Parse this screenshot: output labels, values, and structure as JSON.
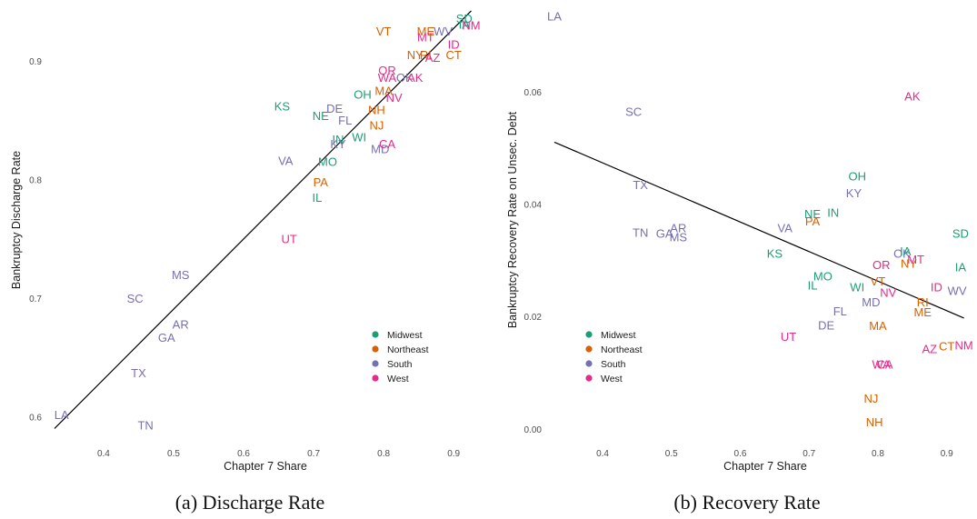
{
  "colors": {
    "Midwest": "#1b9e77",
    "Northeast": "#d95f02",
    "South": "#7570b3",
    "West": "#e7298a",
    "fit_line": "#000000"
  },
  "chart_data": [
    {
      "type": "scatter",
      "caption": "(a) Discharge Rate",
      "xlabel": "Chapter 7 Share",
      "ylabel": "Bankruptcy Discharge Rate",
      "xlim": [
        0.33,
        0.94
      ],
      "ylim": [
        0.585,
        0.945
      ],
      "xticks": [
        0.4,
        0.5,
        0.6,
        0.7,
        0.8,
        0.9
      ],
      "yticks": [
        0.6,
        0.7,
        0.8,
        0.9
      ],
      "grid": false,
      "legend_position": "bottom-right",
      "legend": [
        "Midwest",
        "Northeast",
        "South",
        "West"
      ],
      "fit_line": [
        [
          0.33,
          0.59
        ],
        [
          0.925,
          0.942
        ]
      ],
      "points": [
        {
          "label": "LA",
          "region": "South",
          "x": 0.34,
          "y": 0.602
        },
        {
          "label": "TN",
          "region": "South",
          "x": 0.46,
          "y": 0.593
        },
        {
          "label": "TX",
          "region": "South",
          "x": 0.45,
          "y": 0.637
        },
        {
          "label": "SC",
          "region": "South",
          "x": 0.445,
          "y": 0.7
        },
        {
          "label": "GA",
          "region": "South",
          "x": 0.49,
          "y": 0.667
        },
        {
          "label": "AR",
          "region": "South",
          "x": 0.51,
          "y": 0.678
        },
        {
          "label": "MS",
          "region": "South",
          "x": 0.51,
          "y": 0.72
        },
        {
          "label": "UT",
          "region": "West",
          "x": 0.665,
          "y": 0.75
        },
        {
          "label": "IL",
          "region": "Midwest",
          "x": 0.705,
          "y": 0.785
        },
        {
          "label": "PA",
          "region": "Northeast",
          "x": 0.71,
          "y": 0.798
        },
        {
          "label": "MO",
          "region": "Midwest",
          "x": 0.72,
          "y": 0.815
        },
        {
          "label": "VA",
          "region": "South",
          "x": 0.66,
          "y": 0.816
        },
        {
          "label": "KS",
          "region": "Midwest",
          "x": 0.655,
          "y": 0.862
        },
        {
          "label": "NE",
          "region": "Midwest",
          "x": 0.71,
          "y": 0.854
        },
        {
          "label": "DE",
          "region": "South",
          "x": 0.73,
          "y": 0.86
        },
        {
          "label": "FL",
          "region": "South",
          "x": 0.745,
          "y": 0.85
        },
        {
          "label": "IN",
          "region": "Midwest",
          "x": 0.735,
          "y": 0.834
        },
        {
          "label": "KY",
          "region": "South",
          "x": 0.735,
          "y": 0.83
        },
        {
          "label": "WI",
          "region": "Midwest",
          "x": 0.765,
          "y": 0.836
        },
        {
          "label": "NJ",
          "region": "Northeast",
          "x": 0.79,
          "y": 0.846
        },
        {
          "label": "NH",
          "region": "Northeast",
          "x": 0.79,
          "y": 0.859
        },
        {
          "label": "OH",
          "region": "Midwest",
          "x": 0.77,
          "y": 0.872
        },
        {
          "label": "MA",
          "region": "Northeast",
          "x": 0.8,
          "y": 0.875
        },
        {
          "label": "NV",
          "region": "West",
          "x": 0.815,
          "y": 0.869
        },
        {
          "label": "MD",
          "region": "South",
          "x": 0.795,
          "y": 0.826
        },
        {
          "label": "CA",
          "region": "West",
          "x": 0.805,
          "y": 0.83
        },
        {
          "label": "OR",
          "region": "West",
          "x": 0.805,
          "y": 0.892
        },
        {
          "label": "WA",
          "region": "West",
          "x": 0.805,
          "y": 0.886
        },
        {
          "label": "OK",
          "region": "South",
          "x": 0.83,
          "y": 0.886
        },
        {
          "label": "AK",
          "region": "West",
          "x": 0.845,
          "y": 0.886
        },
        {
          "label": "NY",
          "region": "Northeast",
          "x": 0.845,
          "y": 0.905
        },
        {
          "label": "RI",
          "region": "Northeast",
          "x": 0.86,
          "y": 0.905
        },
        {
          "label": "AZ",
          "region": "West",
          "x": 0.87,
          "y": 0.903
        },
        {
          "label": "CT",
          "region": "Northeast",
          "x": 0.9,
          "y": 0.905
        },
        {
          "label": "VT",
          "region": "Northeast",
          "x": 0.8,
          "y": 0.925
        },
        {
          "label": "ME",
          "region": "Northeast",
          "x": 0.86,
          "y": 0.925
        },
        {
          "label": "MT",
          "region": "West",
          "x": 0.86,
          "y": 0.92
        },
        {
          "label": "WV",
          "region": "South",
          "x": 0.885,
          "y": 0.925
        },
        {
          "label": "ID",
          "region": "West",
          "x": 0.9,
          "y": 0.914
        },
        {
          "label": "SD",
          "region": "Midwest",
          "x": 0.915,
          "y": 0.936
        },
        {
          "label": "IA",
          "region": "Midwest",
          "x": 0.915,
          "y": 0.931
        },
        {
          "label": "NM",
          "region": "West",
          "x": 0.925,
          "y": 0.93
        }
      ]
    },
    {
      "type": "scatter",
      "caption": "(b) Recovery Rate",
      "xlabel": "Chapter 7 Share",
      "ylabel": "Bankruptcy Recovery Rate on Unsec. Debt",
      "xlim": [
        0.33,
        0.94
      ],
      "ylim": [
        -0.001,
        0.075
      ],
      "xticks": [
        0.4,
        0.5,
        0.6,
        0.7,
        0.8,
        0.9
      ],
      "yticks": [
        0.0,
        0.02,
        0.04,
        0.06
      ],
      "ytick_labels": [
        "0.00",
        "0.02",
        "0.04",
        "0.06"
      ],
      "grid": false,
      "legend_position": "bottom-left",
      "legend": [
        "Midwest",
        "Northeast",
        "South",
        "West"
      ],
      "fit_line": [
        [
          0.33,
          0.051
        ],
        [
          0.925,
          0.0197
        ]
      ],
      "points": [
        {
          "label": "LA",
          "region": "South",
          "x": 0.33,
          "y": 0.0735
        },
        {
          "label": "SC",
          "region": "South",
          "x": 0.445,
          "y": 0.0565
        },
        {
          "label": "TX",
          "region": "South",
          "x": 0.455,
          "y": 0.0435
        },
        {
          "label": "TN",
          "region": "South",
          "x": 0.455,
          "y": 0.035
        },
        {
          "label": "GA",
          "region": "South",
          "x": 0.49,
          "y": 0.0348
        },
        {
          "label": "MS",
          "region": "South",
          "x": 0.51,
          "y": 0.0342
        },
        {
          "label": "AR",
          "region": "South",
          "x": 0.51,
          "y": 0.0358
        },
        {
          "label": "VA",
          "region": "South",
          "x": 0.665,
          "y": 0.0358
        },
        {
          "label": "PA",
          "region": "Northeast",
          "x": 0.705,
          "y": 0.037
        },
        {
          "label": "NE",
          "region": "Midwest",
          "x": 0.705,
          "y": 0.0383
        },
        {
          "label": "IN",
          "region": "Midwest",
          "x": 0.735,
          "y": 0.0385
        },
        {
          "label": "KY",
          "region": "South",
          "x": 0.765,
          "y": 0.042
        },
        {
          "label": "OH",
          "region": "Midwest",
          "x": 0.77,
          "y": 0.045
        },
        {
          "label": "KS",
          "region": "Midwest",
          "x": 0.65,
          "y": 0.0313
        },
        {
          "label": "MO",
          "region": "Midwest",
          "x": 0.72,
          "y": 0.0272
        },
        {
          "label": "IL",
          "region": "Midwest",
          "x": 0.705,
          "y": 0.0256
        },
        {
          "label": "WI",
          "region": "Midwest",
          "x": 0.77,
          "y": 0.0253
        },
        {
          "label": "VT",
          "region": "Northeast",
          "x": 0.8,
          "y": 0.0263
        },
        {
          "label": "MD",
          "region": "South",
          "x": 0.79,
          "y": 0.0226
        },
        {
          "label": "NV",
          "region": "West",
          "x": 0.815,
          "y": 0.0243
        },
        {
          "label": "FL",
          "region": "South",
          "x": 0.745,
          "y": 0.021
        },
        {
          "label": "DE",
          "region": "South",
          "x": 0.725,
          "y": 0.0185
        },
        {
          "label": "MA",
          "region": "Northeast",
          "x": 0.8,
          "y": 0.0184
        },
        {
          "label": "UT",
          "region": "West",
          "x": 0.67,
          "y": 0.0165
        },
        {
          "label": "OR",
          "region": "West",
          "x": 0.805,
          "y": 0.0292
        },
        {
          "label": "OK",
          "region": "South",
          "x": 0.835,
          "y": 0.0313
        },
        {
          "label": "IA",
          "region": "Midwest",
          "x": 0.84,
          "y": 0.0317
        },
        {
          "label": "NY",
          "region": "Northeast",
          "x": 0.845,
          "y": 0.0295
        },
        {
          "label": "MT",
          "region": "West",
          "x": 0.855,
          "y": 0.0302
        },
        {
          "label": "RI",
          "region": "Northeast",
          "x": 0.865,
          "y": 0.0226
        },
        {
          "label": "ME",
          "region": "Northeast",
          "x": 0.865,
          "y": 0.0208
        },
        {
          "label": "ID",
          "region": "West",
          "x": 0.885,
          "y": 0.0253
        },
        {
          "label": "WV",
          "region": "South",
          "x": 0.915,
          "y": 0.0246
        },
        {
          "label": "AK",
          "region": "West",
          "x": 0.85,
          "y": 0.0592
        },
        {
          "label": "SD",
          "region": "Midwest",
          "x": 0.92,
          "y": 0.0348
        },
        {
          "label": "IA",
          "region": "Midwest",
          "x": 0.92,
          "y": 0.0288
        },
        {
          "label": "WA",
          "region": "West",
          "x": 0.805,
          "y": 0.0115
        },
        {
          "label": "CA",
          "region": "West",
          "x": 0.81,
          "y": 0.0115
        },
        {
          "label": "AZ",
          "region": "West",
          "x": 0.875,
          "y": 0.0143
        },
        {
          "label": "CT",
          "region": "Northeast",
          "x": 0.9,
          "y": 0.0148
        },
        {
          "label": "NM",
          "region": "West",
          "x": 0.925,
          "y": 0.0149
        },
        {
          "label": "NJ",
          "region": "Northeast",
          "x": 0.79,
          "y": 0.0055
        },
        {
          "label": "NH",
          "region": "Northeast",
          "x": 0.795,
          "y": 0.0013
        }
      ]
    }
  ]
}
